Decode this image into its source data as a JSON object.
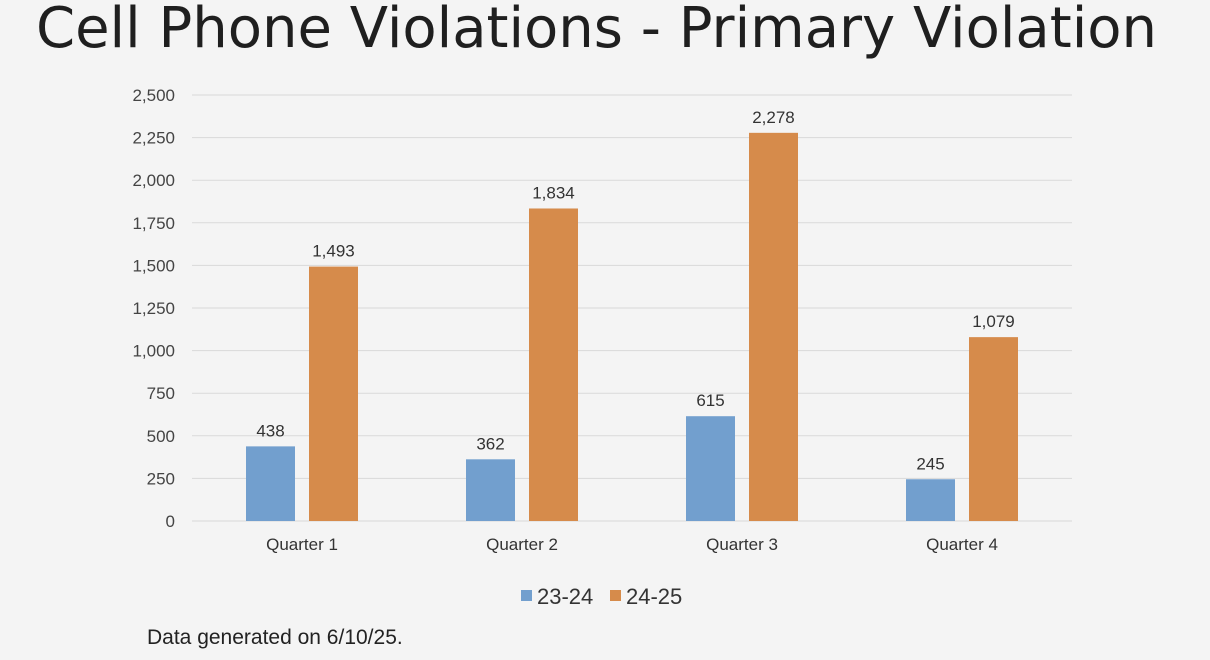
{
  "slide": {
    "title": "Cell Phone Violations - Primary Violation",
    "footnote": "Data generated on 6/10/25."
  },
  "chart_data": {
    "type": "bar",
    "title": "Cell Phone Violations - Primary Violation",
    "categories": [
      "Quarter 1",
      "Quarter 2",
      "Quarter 3",
      "Quarter 4"
    ],
    "series": [
      {
        "name": "23-24",
        "color": "#729fce",
        "values": [
          438,
          362,
          615,
          245
        ],
        "labels": [
          "438",
          "362",
          "615",
          "245"
        ]
      },
      {
        "name": "24-25",
        "color": "#d68b4b",
        "values": [
          1493,
          1834,
          2278,
          1079
        ],
        "labels": [
          "1,493",
          "1,834",
          "2,278",
          "1,079"
        ]
      }
    ],
    "ylim": [
      0,
      2500
    ],
    "yticks": [
      0,
      250,
      500,
      750,
      1000,
      1250,
      1500,
      1750,
      2000,
      2250,
      2500
    ],
    "ytick_labels": [
      "0",
      "250",
      "500",
      "750",
      "1,000",
      "1,250",
      "1,500",
      "1,750",
      "2,000",
      "2,250",
      "2,500"
    ],
    "xlabel": "",
    "ylabel": "",
    "grid": true,
    "legend": "bottom-center",
    "gridline_color": "#d9d9d9"
  }
}
